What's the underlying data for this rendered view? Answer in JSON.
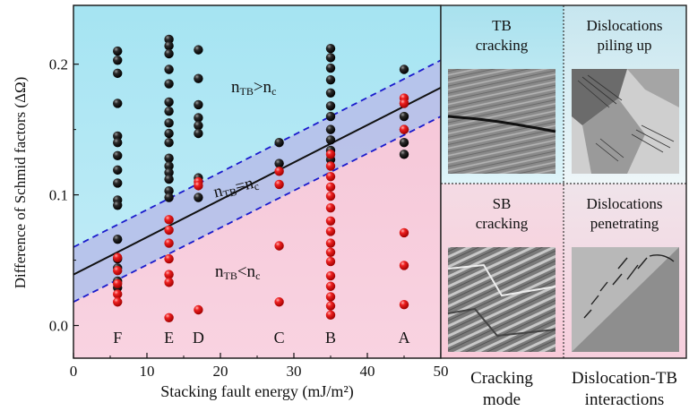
{
  "chart_data": {
    "type": "scatter",
    "xlabel": "Stacking fault energy (mJ/m²)",
    "ylabel": "Difference of Schmid factors (ΔΩ)",
    "xlim": [
      0,
      50
    ],
    "ylim": [
      -0.025,
      0.245
    ],
    "x_ticks": [
      "0",
      "10",
      "20",
      "30",
      "40",
      "50"
    ],
    "y_ticks": [
      "0.0",
      "0.1",
      "0.2"
    ],
    "y_tick_values": [
      0.0,
      0.1,
      0.2
    ],
    "region_labels": {
      "upper_main": "n",
      "upper_sub": "TB",
      "upper_rest": ">n",
      "upper_sub2": "c",
      "middle_main": "n",
      "middle_sub": "TB",
      "middle_rest": "=n",
      "middle_sub2": "c",
      "lower_main": "n",
      "lower_sub": "TB",
      "lower_rest": "<n",
      "lower_sub2": "c"
    },
    "material_labels": [
      {
        "label": "F",
        "x": 6
      },
      {
        "label": "E",
        "x": 13
      },
      {
        "label": "D",
        "x": 17
      },
      {
        "label": "C",
        "x": 28
      },
      {
        "label": "B",
        "x": 35
      },
      {
        "label": "A",
        "x": 45
      }
    ],
    "center_line": {
      "x": [
        0,
        50
      ],
      "y": [
        0.039,
        0.182
      ]
    },
    "band_upper": {
      "x": [
        0,
        50
      ],
      "y": [
        0.06,
        0.203
      ]
    },
    "band_lower": {
      "x": [
        0,
        50
      ],
      "y": [
        0.018,
        0.16
      ]
    },
    "series": [
      {
        "color": "#1a1a1a",
        "points": [
          [
            6,
            0.21
          ],
          [
            6,
            0.203
          ],
          [
            6,
            0.193
          ],
          [
            6,
            0.17
          ],
          [
            6,
            0.145
          ],
          [
            6,
            0.14
          ],
          [
            6,
            0.13
          ],
          [
            6,
            0.119
          ],
          [
            6,
            0.109
          ],
          [
            6,
            0.096
          ],
          [
            6,
            0.092
          ],
          [
            6,
            0.066
          ],
          [
            6,
            0.051
          ],
          [
            6,
            0.044
          ],
          [
            6,
            0.034
          ],
          [
            6,
            0.029
          ],
          [
            13,
            0.219
          ],
          [
            13,
            0.214
          ],
          [
            13,
            0.208
          ],
          [
            13,
            0.196
          ],
          [
            13,
            0.185
          ],
          [
            13,
            0.171
          ],
          [
            13,
            0.164
          ],
          [
            13,
            0.155
          ],
          [
            13,
            0.147
          ],
          [
            13,
            0.14
          ],
          [
            13,
            0.128
          ],
          [
            13,
            0.122
          ],
          [
            13,
            0.117
          ],
          [
            13,
            0.112
          ],
          [
            13,
            0.103
          ],
          [
            13,
            0.098
          ],
          [
            17,
            0.211
          ],
          [
            17,
            0.189
          ],
          [
            17,
            0.169
          ],
          [
            17,
            0.159
          ],
          [
            17,
            0.153
          ],
          [
            17,
            0.147
          ],
          [
            17,
            0.113
          ],
          [
            17,
            0.098
          ],
          [
            28,
            0.14
          ],
          [
            28,
            0.124
          ],
          [
            35,
            0.212
          ],
          [
            35,
            0.205
          ],
          [
            35,
            0.197
          ],
          [
            35,
            0.188
          ],
          [
            35,
            0.178
          ],
          [
            35,
            0.168
          ],
          [
            35,
            0.16
          ],
          [
            35,
            0.15
          ],
          [
            35,
            0.142
          ],
          [
            35,
            0.134
          ],
          [
            35,
            0.127
          ],
          [
            45,
            0.196
          ],
          [
            45,
            0.17
          ],
          [
            45,
            0.16
          ],
          [
            45,
            0.15
          ],
          [
            45,
            0.14
          ],
          [
            45,
            0.131
          ]
        ]
      },
      {
        "color": "#e01a1a",
        "points": [
          [
            6,
            0.052
          ],
          [
            6,
            0.042
          ],
          [
            6,
            0.032
          ],
          [
            6,
            0.024
          ],
          [
            6,
            0.018
          ],
          [
            13,
            0.081
          ],
          [
            13,
            0.073
          ],
          [
            13,
            0.063
          ],
          [
            13,
            0.051
          ],
          [
            13,
            0.039
          ],
          [
            13,
            0.033
          ],
          [
            13,
            0.006
          ],
          [
            17,
            0.11
          ],
          [
            17,
            0.107
          ],
          [
            17,
            0.012
          ],
          [
            28,
            0.118
          ],
          [
            28,
            0.108
          ],
          [
            28,
            0.061
          ],
          [
            28,
            0.018
          ],
          [
            35,
            0.131
          ],
          [
            35,
            0.122
          ],
          [
            35,
            0.114
          ],
          [
            35,
            0.106
          ],
          [
            35,
            0.099
          ],
          [
            35,
            0.09
          ],
          [
            35,
            0.08
          ],
          [
            35,
            0.072
          ],
          [
            35,
            0.063
          ],
          [
            35,
            0.056
          ],
          [
            35,
            0.049
          ],
          [
            35,
            0.038
          ],
          [
            35,
            0.03
          ],
          [
            35,
            0.022
          ],
          [
            35,
            0.015
          ],
          [
            35,
            0.008
          ],
          [
            45,
            0.174
          ],
          [
            45,
            0.17
          ],
          [
            45,
            0.15
          ],
          [
            45,
            0.071
          ],
          [
            45,
            0.046
          ],
          [
            45,
            0.016
          ]
        ]
      }
    ]
  },
  "panels": [
    {
      "title_line1": "TB",
      "title_line2": "cracking",
      "image": "TB cracking micrograph"
    },
    {
      "title_line1": "Dislocations",
      "title_line2": "piling up",
      "image": "Dislocations piling up micrograph"
    },
    {
      "title_line1": "SB",
      "title_line2": "cracking",
      "image": "SB cracking micrograph"
    },
    {
      "title_line1": "Dislocations",
      "title_line2": "penetrating",
      "image": "Dislocations penetrating micrograph"
    }
  ],
  "bottom_captions": [
    {
      "line1": "Cracking",
      "line2": "mode"
    },
    {
      "line1": "Dislocation-TB",
      "line2": "interactions"
    }
  ],
  "colors": {
    "upper_region": "#a9e6f3",
    "lower_region": "#f7c6d8",
    "band_fill": "#b7c3ea",
    "band_edge": "#1a1acc",
    "center_line": "#111111"
  }
}
